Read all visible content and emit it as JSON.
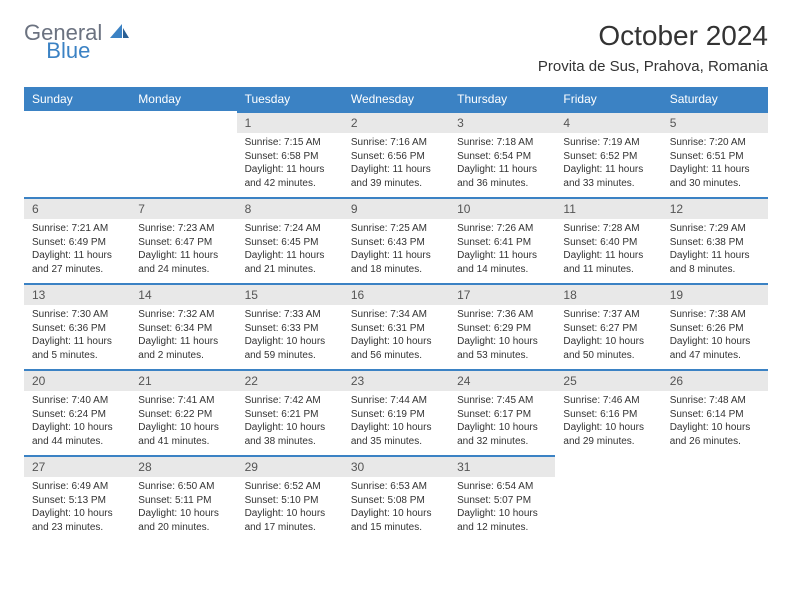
{
  "logo": {
    "general": "General",
    "blue": "Blue"
  },
  "title": "October 2024",
  "location": "Provita de Sus, Prahova, Romania",
  "colors": {
    "header_bg": "#3b82c4",
    "header_text": "#ffffff",
    "daynum_bg": "#e8e8e8",
    "daynum_border": "#3b82c4",
    "body_text": "#333333",
    "logo_gray": "#6b7280",
    "logo_blue": "#3b82c4"
  },
  "weekdays": [
    "Sunday",
    "Monday",
    "Tuesday",
    "Wednesday",
    "Thursday",
    "Friday",
    "Saturday"
  ],
  "weeks": [
    [
      null,
      null,
      {
        "n": "1",
        "sr": "7:15 AM",
        "ss": "6:58 PM",
        "dl": "11 hours and 42 minutes."
      },
      {
        "n": "2",
        "sr": "7:16 AM",
        "ss": "6:56 PM",
        "dl": "11 hours and 39 minutes."
      },
      {
        "n": "3",
        "sr": "7:18 AM",
        "ss": "6:54 PM",
        "dl": "11 hours and 36 minutes."
      },
      {
        "n": "4",
        "sr": "7:19 AM",
        "ss": "6:52 PM",
        "dl": "11 hours and 33 minutes."
      },
      {
        "n": "5",
        "sr": "7:20 AM",
        "ss": "6:51 PM",
        "dl": "11 hours and 30 minutes."
      }
    ],
    [
      {
        "n": "6",
        "sr": "7:21 AM",
        "ss": "6:49 PM",
        "dl": "11 hours and 27 minutes."
      },
      {
        "n": "7",
        "sr": "7:23 AM",
        "ss": "6:47 PM",
        "dl": "11 hours and 24 minutes."
      },
      {
        "n": "8",
        "sr": "7:24 AM",
        "ss": "6:45 PM",
        "dl": "11 hours and 21 minutes."
      },
      {
        "n": "9",
        "sr": "7:25 AM",
        "ss": "6:43 PM",
        "dl": "11 hours and 18 minutes."
      },
      {
        "n": "10",
        "sr": "7:26 AM",
        "ss": "6:41 PM",
        "dl": "11 hours and 14 minutes."
      },
      {
        "n": "11",
        "sr": "7:28 AM",
        "ss": "6:40 PM",
        "dl": "11 hours and 11 minutes."
      },
      {
        "n": "12",
        "sr": "7:29 AM",
        "ss": "6:38 PM",
        "dl": "11 hours and 8 minutes."
      }
    ],
    [
      {
        "n": "13",
        "sr": "7:30 AM",
        "ss": "6:36 PM",
        "dl": "11 hours and 5 minutes."
      },
      {
        "n": "14",
        "sr": "7:32 AM",
        "ss": "6:34 PM",
        "dl": "11 hours and 2 minutes."
      },
      {
        "n": "15",
        "sr": "7:33 AM",
        "ss": "6:33 PM",
        "dl": "10 hours and 59 minutes."
      },
      {
        "n": "16",
        "sr": "7:34 AM",
        "ss": "6:31 PM",
        "dl": "10 hours and 56 minutes."
      },
      {
        "n": "17",
        "sr": "7:36 AM",
        "ss": "6:29 PM",
        "dl": "10 hours and 53 minutes."
      },
      {
        "n": "18",
        "sr": "7:37 AM",
        "ss": "6:27 PM",
        "dl": "10 hours and 50 minutes."
      },
      {
        "n": "19",
        "sr": "7:38 AM",
        "ss": "6:26 PM",
        "dl": "10 hours and 47 minutes."
      }
    ],
    [
      {
        "n": "20",
        "sr": "7:40 AM",
        "ss": "6:24 PM",
        "dl": "10 hours and 44 minutes."
      },
      {
        "n": "21",
        "sr": "7:41 AM",
        "ss": "6:22 PM",
        "dl": "10 hours and 41 minutes."
      },
      {
        "n": "22",
        "sr": "7:42 AM",
        "ss": "6:21 PM",
        "dl": "10 hours and 38 minutes."
      },
      {
        "n": "23",
        "sr": "7:44 AM",
        "ss": "6:19 PM",
        "dl": "10 hours and 35 minutes."
      },
      {
        "n": "24",
        "sr": "7:45 AM",
        "ss": "6:17 PM",
        "dl": "10 hours and 32 minutes."
      },
      {
        "n": "25",
        "sr": "7:46 AM",
        "ss": "6:16 PM",
        "dl": "10 hours and 29 minutes."
      },
      {
        "n": "26",
        "sr": "7:48 AM",
        "ss": "6:14 PM",
        "dl": "10 hours and 26 minutes."
      }
    ],
    [
      {
        "n": "27",
        "sr": "6:49 AM",
        "ss": "5:13 PM",
        "dl": "10 hours and 23 minutes."
      },
      {
        "n": "28",
        "sr": "6:50 AM",
        "ss": "5:11 PM",
        "dl": "10 hours and 20 minutes."
      },
      {
        "n": "29",
        "sr": "6:52 AM",
        "ss": "5:10 PM",
        "dl": "10 hours and 17 minutes."
      },
      {
        "n": "30",
        "sr": "6:53 AM",
        "ss": "5:08 PM",
        "dl": "10 hours and 15 minutes."
      },
      {
        "n": "31",
        "sr": "6:54 AM",
        "ss": "5:07 PM",
        "dl": "10 hours and 12 minutes."
      },
      null,
      null
    ]
  ]
}
